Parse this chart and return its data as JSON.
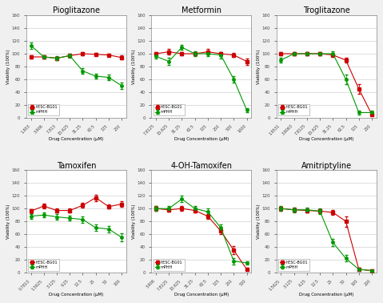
{
  "subplots": [
    {
      "title": "Pioglitazone",
      "xtick_labels": [
        "1.953",
        "3.906",
        "7.813",
        "15.625",
        "31.25",
        "62.5",
        "125",
        "250"
      ],
      "hESC_BG01": [
        95,
        95,
        93,
        97,
        100,
        99,
        98,
        94
      ],
      "hESC_BG01_err": [
        3,
        2,
        2,
        2,
        2,
        2,
        2,
        3
      ],
      "mPHH": [
        113,
        95,
        93,
        97,
        73,
        65,
        63,
        50
      ],
      "mPHH_err": [
        5,
        3,
        3,
        3,
        4,
        4,
        4,
        5
      ],
      "ylim": [
        0,
        160
      ],
      "yticks": [
        0,
        20,
        40,
        60,
        80,
        100,
        120,
        140,
        160
      ]
    },
    {
      "title": "Metformin",
      "xtick_labels": [
        "7.8125",
        "15.625",
        "31.25",
        "62.5",
        "125",
        "250",
        "500",
        "1000"
      ],
      "hESC_BG01": [
        100,
        103,
        100,
        100,
        103,
        100,
        98,
        88
      ],
      "hESC_BG01_err": [
        3,
        4,
        3,
        3,
        4,
        3,
        3,
        5
      ],
      "mPHH": [
        96,
        88,
        110,
        100,
        100,
        98,
        60,
        12
      ],
      "mPHH_err": [
        4,
        6,
        4,
        4,
        4,
        5,
        5,
        3
      ],
      "ylim": [
        0,
        160
      ],
      "yticks": [
        0,
        20,
        40,
        60,
        80,
        100,
        120,
        140,
        160
      ]
    },
    {
      "title": "Troglitazone",
      "xtick_labels": [
        "1.9531",
        "3.9063",
        "7.8125",
        "15.625",
        "31.25",
        "62.5",
        "125",
        "250"
      ],
      "hESC_BG01": [
        100,
        100,
        100,
        100,
        98,
        90,
        45,
        5
      ],
      "hESC_BG01_err": [
        3,
        2,
        2,
        2,
        2,
        4,
        8,
        2
      ],
      "mPHH": [
        90,
        100,
        100,
        100,
        100,
        60,
        8,
        8
      ],
      "mPHH_err": [
        4,
        3,
        3,
        3,
        4,
        8,
        3,
        3
      ],
      "ylim": [
        0,
        160
      ],
      "yticks": [
        0,
        20,
        40,
        60,
        80,
        100,
        120,
        140,
        160
      ]
    },
    {
      "title": "Tamoxifen",
      "xtick_labels": [
        "0.7813",
        "1.5625",
        "3.125",
        "6.25",
        "12.5",
        "25",
        "50",
        "100"
      ],
      "hESC_BG01": [
        96,
        104,
        97,
        97,
        105,
        117,
        103,
        107
      ],
      "hESC_BG01_err": [
        3,
        4,
        3,
        3,
        4,
        5,
        3,
        4
      ],
      "mPHH": [
        88,
        90,
        87,
        85,
        83,
        70,
        68,
        55
      ],
      "mPHH_err": [
        4,
        4,
        4,
        4,
        5,
        5,
        5,
        6
      ],
      "ylim": [
        0,
        160
      ],
      "yticks": [
        0,
        20,
        40,
        60,
        80,
        100,
        120,
        140,
        160
      ]
    },
    {
      "title": "4-OH-Tamoxifen",
      "xtick_labels": [
        "3.906",
        "7.8125",
        "15.625",
        "31.25",
        "62.5",
        "125",
        "250",
        "500"
      ],
      "hESC_BG01": [
        100,
        98,
        100,
        97,
        88,
        65,
        35,
        5
      ],
      "hESC_BG01_err": [
        4,
        3,
        4,
        3,
        4,
        5,
        6,
        2
      ],
      "mPHH": [
        100,
        100,
        115,
        100,
        95,
        70,
        18,
        15
      ],
      "mPHH_err": [
        4,
        4,
        5,
        4,
        5,
        5,
        5,
        3
      ],
      "ylim": [
        0,
        160
      ],
      "yticks": [
        0,
        20,
        40,
        60,
        80,
        100,
        120,
        140,
        160
      ]
    },
    {
      "title": "Amitriptyline",
      "xtick_labels": [
        "1.5625",
        "3.125",
        "6.25",
        "12.5",
        "25",
        "50",
        "100",
        "200"
      ],
      "hESC_BG01": [
        100,
        98,
        97,
        96,
        94,
        80,
        5,
        3
      ],
      "hESC_BG01_err": [
        3,
        3,
        3,
        3,
        4,
        8,
        2,
        1
      ],
      "mPHH": [
        100,
        98,
        98,
        96,
        47,
        22,
        5,
        3
      ],
      "mPHH_err": [
        4,
        4,
        4,
        4,
        6,
        5,
        3,
        2
      ],
      "ylim": [
        0,
        160
      ],
      "yticks": [
        0,
        20,
        40,
        60,
        80,
        100,
        120,
        140,
        160
      ]
    }
  ],
  "hESC_color": "#cc0000",
  "mPHH_color": "#009900",
  "hESC_label": "hESC-BG01",
  "mPHH_label": "mPHH",
  "xlabel": "Drug Concentration (μM)",
  "ylabel": "Viability (100%)",
  "bg_color": "#f0f0f0",
  "plot_bg": "#ffffff",
  "grid_color": "#d0d0d0"
}
